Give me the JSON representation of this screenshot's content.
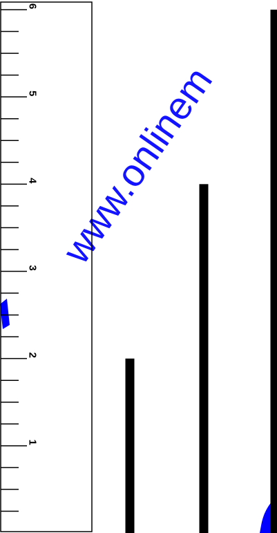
{
  "figure": {
    "ruler": {
      "min": 0,
      "max": 6,
      "major_step": 1,
      "minor_step": 0.25,
      "labels": [
        "1",
        "2",
        "3",
        "4",
        "5",
        "6"
      ]
    },
    "bars": [
      {
        "value": 2
      },
      {
        "value": 4
      },
      {
        "value": 6
      }
    ],
    "colors": {
      "ink": "#000000",
      "watermark": "#0000ff",
      "background": "#ffffff"
    }
  },
  "watermark": {
    "text": "www.onlinem"
  }
}
